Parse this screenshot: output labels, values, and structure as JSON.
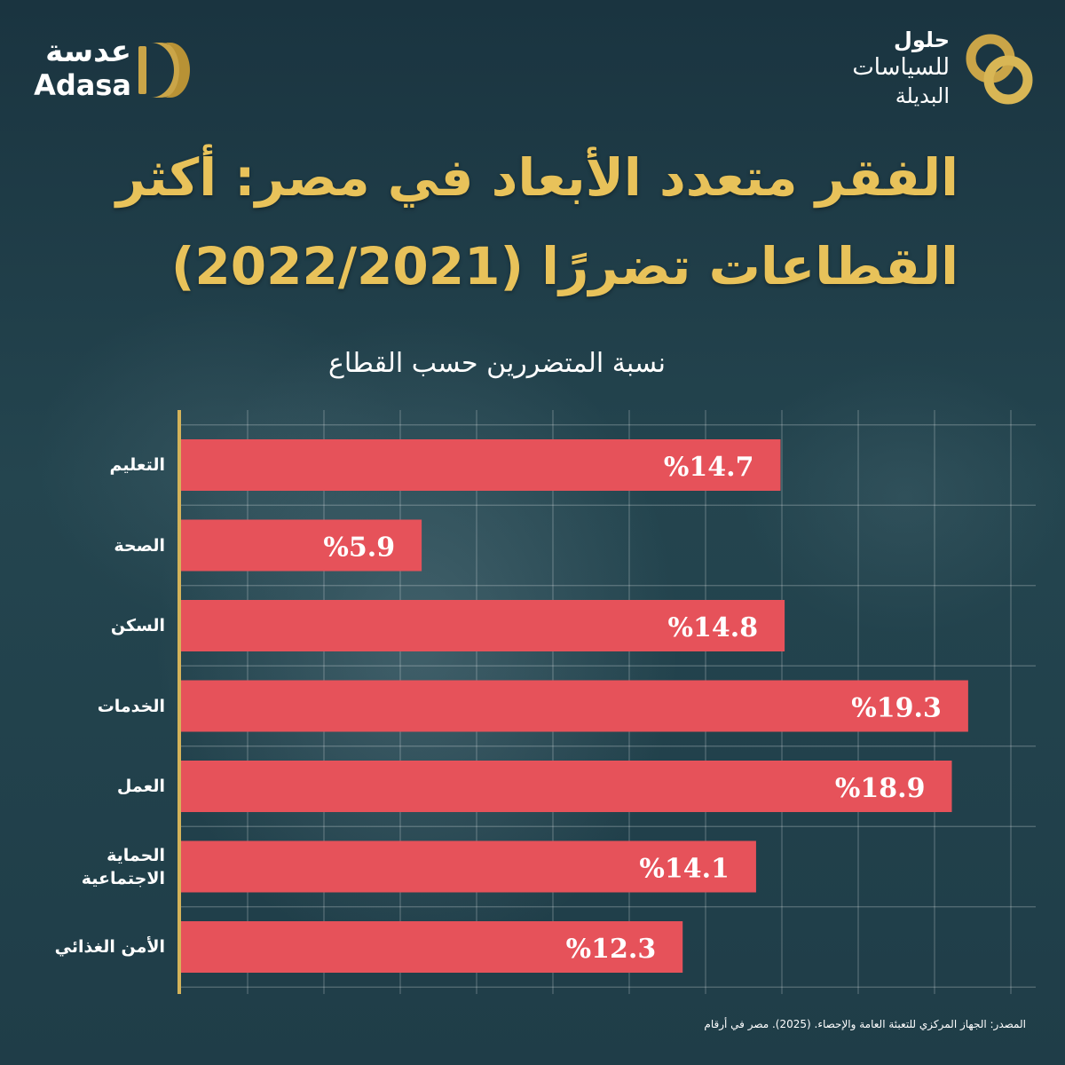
{
  "brand": {
    "adasa_ar": "عدسة",
    "adasa_en": "Adasa",
    "holoul_line1": "حلول",
    "holoul_line2": "للسياسات",
    "holoul_line3": "البديلة"
  },
  "colors": {
    "bar": "#e6525a",
    "title": "#e8c25a",
    "gold": "#caa548",
    "axis": "#d4b35a",
    "grid": "rgba(255,255,255,0.25)",
    "background": "#1d3a46"
  },
  "chart_data": {
    "type": "bar",
    "orientation": "horizontal",
    "title_line1": "الفقر متعدد الأبعاد في مصر: أكثر",
    "title_line2": "القطاعات تضررًا (2022/2021)",
    "subtitle": "نسبة المتضررين حسب القطاع",
    "categories": [
      "التعليم",
      "الصحة",
      "السكن",
      "الخدمات",
      "العمل",
      "الحماية الاجتماعية",
      "الأمن الغذائي"
    ],
    "values": [
      14.7,
      5.9,
      14.8,
      19.3,
      18.9,
      14.1,
      12.3
    ],
    "value_labels": [
      "%14.7",
      "%5.9",
      "%14.8",
      "%19.3",
      "%18.9",
      "%14.1",
      "%12.3"
    ],
    "xlim": [
      0,
      21
    ],
    "grid": true,
    "source": "المصدر: الجهاز المركزي للتعبئة العامة والإحصاء. (2025). مصر في أرقام"
  }
}
